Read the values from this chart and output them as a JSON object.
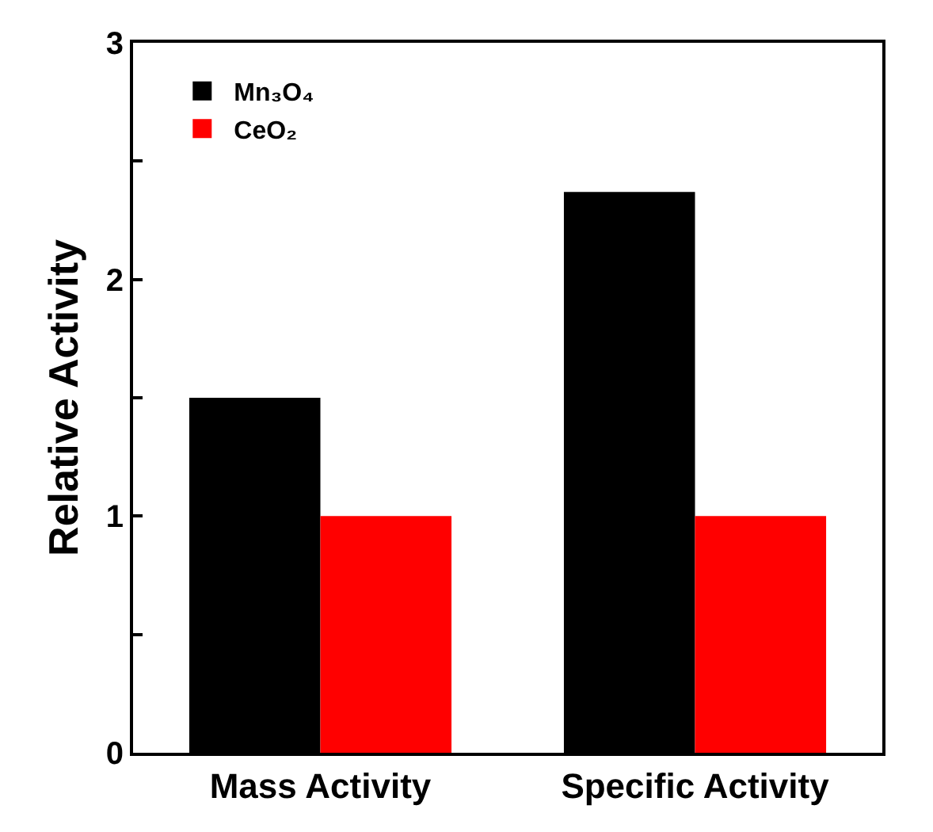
{
  "chart_data": {
    "type": "bar",
    "ylabel": "Relative Activity",
    "categories": [
      "Mass Activity",
      "Specific Activity"
    ],
    "series": [
      {
        "name": "Mn₃O₄",
        "color": "#000000",
        "values": [
          1.5,
          2.37
        ]
      },
      {
        "name": "CeO₂",
        "color": "#ff0000",
        "values": [
          1.0,
          1.0
        ]
      }
    ],
    "ylim": [
      0,
      3
    ],
    "yticks": [
      0,
      {
        "value": 0.5,
        "label": null
      },
      1,
      {
        "value": 1.5,
        "label": null
      },
      2,
      {
        "value": 2.5,
        "label": null
      },
      3
    ],
    "legend": "top left"
  }
}
